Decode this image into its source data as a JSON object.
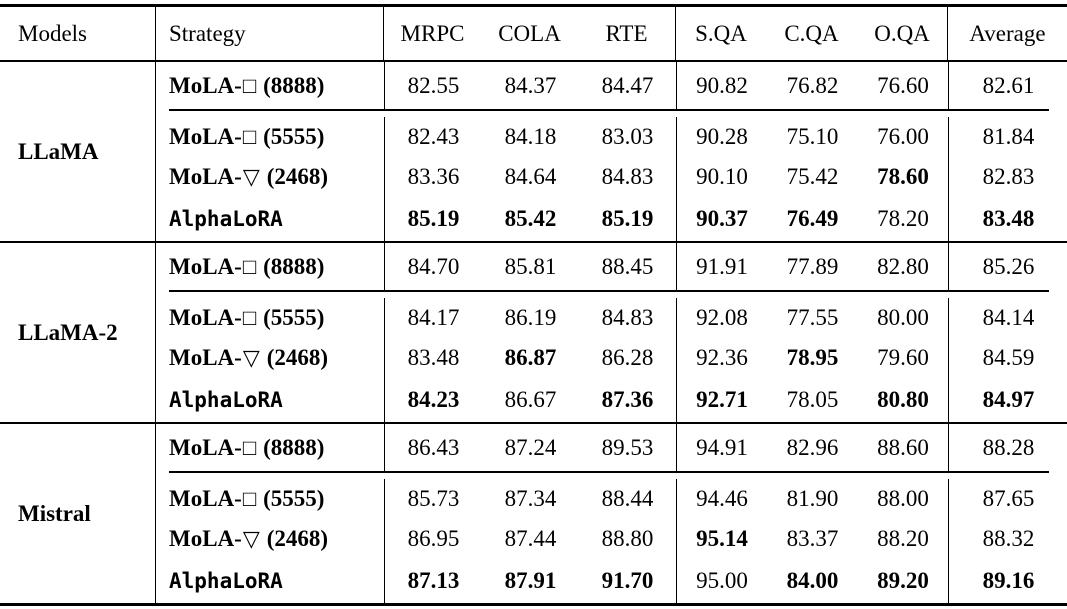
{
  "page": {
    "background": "#ffffff",
    "text_color": "#000000",
    "rule_color": "#000000"
  },
  "table": {
    "headers": [
      {
        "label": "Models"
      },
      {
        "label": "Strategy"
      },
      {
        "label": "MRPC"
      },
      {
        "label": "COLA"
      },
      {
        "label": "RTE"
      },
      {
        "label": "S.QA"
      },
      {
        "label": "C.QA"
      },
      {
        "label": "O.QA"
      },
      {
        "label": "Average"
      }
    ],
    "groups": [
      {
        "model": "LLaMA",
        "rows": [
          {
            "strategy": {
              "mono": false,
              "prefix": "MoLA-",
              "symbol": "□",
              "suffix": "(8888)"
            },
            "values": [
              {
                "v": "82.55",
                "b": false
              },
              {
                "v": "84.37",
                "b": false
              },
              {
                "v": "84.47",
                "b": false
              },
              {
                "v": "90.82",
                "b": false
              },
              {
                "v": "76.82",
                "b": false
              },
              {
                "v": "76.60",
                "b": false
              },
              {
                "v": "82.61",
                "b": false
              }
            ]
          },
          {
            "strategy": {
              "mono": false,
              "prefix": "MoLA-",
              "symbol": "□",
              "suffix": "(5555)"
            },
            "values": [
              {
                "v": "82.43",
                "b": false
              },
              {
                "v": "84.18",
                "b": false
              },
              {
                "v": "83.03",
                "b": false
              },
              {
                "v": "90.28",
                "b": false
              },
              {
                "v": "75.10",
                "b": false
              },
              {
                "v": "76.00",
                "b": false
              },
              {
                "v": "81.84",
                "b": false
              }
            ]
          },
          {
            "strategy": {
              "mono": false,
              "prefix": "MoLA-",
              "symbol": "▽",
              "suffix": "(2468)"
            },
            "values": [
              {
                "v": "83.36",
                "b": false
              },
              {
                "v": "84.64",
                "b": false
              },
              {
                "v": "84.83",
                "b": false
              },
              {
                "v": "90.10",
                "b": false
              },
              {
                "v": "75.42",
                "b": false
              },
              {
                "v": "78.60",
                "b": true
              },
              {
                "v": "82.83",
                "b": false
              }
            ]
          },
          {
            "strategy": {
              "mono": true,
              "text": "AlphaLoRA"
            },
            "values": [
              {
                "v": "85.19",
                "b": true
              },
              {
                "v": "85.42",
                "b": true
              },
              {
                "v": "85.19",
                "b": true
              },
              {
                "v": "90.37",
                "b": true
              },
              {
                "v": "76.49",
                "b": true
              },
              {
                "v": "78.20",
                "b": false
              },
              {
                "v": "83.48",
                "b": true
              }
            ]
          }
        ]
      },
      {
        "model": "LLaMA-2",
        "rows": [
          {
            "strategy": {
              "mono": false,
              "prefix": "MoLA-",
              "symbol": "□",
              "suffix": "(8888)"
            },
            "values": [
              {
                "v": "84.70",
                "b": false
              },
              {
                "v": "85.81",
                "b": false
              },
              {
                "v": "88.45",
                "b": false
              },
              {
                "v": "91.91",
                "b": false
              },
              {
                "v": "77.89",
                "b": false
              },
              {
                "v": "82.80",
                "b": false
              },
              {
                "v": "85.26",
                "b": false
              }
            ]
          },
          {
            "strategy": {
              "mono": false,
              "prefix": "MoLA-",
              "symbol": "□",
              "suffix": "(5555)"
            },
            "values": [
              {
                "v": "84.17",
                "b": false
              },
              {
                "v": "86.19",
                "b": false
              },
              {
                "v": "84.83",
                "b": false
              },
              {
                "v": "92.08",
                "b": false
              },
              {
                "v": "77.55",
                "b": false
              },
              {
                "v": "80.00",
                "b": false
              },
              {
                "v": "84.14",
                "b": false
              }
            ]
          },
          {
            "strategy": {
              "mono": false,
              "prefix": "MoLA-",
              "symbol": "▽",
              "suffix": "(2468)"
            },
            "values": [
              {
                "v": "83.48",
                "b": false
              },
              {
                "v": "86.87",
                "b": true
              },
              {
                "v": "86.28",
                "b": false
              },
              {
                "v": "92.36",
                "b": false
              },
              {
                "v": "78.95",
                "b": true
              },
              {
                "v": "79.60",
                "b": false
              },
              {
                "v": "84.59",
                "b": false
              }
            ]
          },
          {
            "strategy": {
              "mono": true,
              "text": "AlphaLoRA"
            },
            "values": [
              {
                "v": "84.23",
                "b": true
              },
              {
                "v": "86.67",
                "b": false
              },
              {
                "v": "87.36",
                "b": true
              },
              {
                "v": "92.71",
                "b": true
              },
              {
                "v": "78.05",
                "b": false
              },
              {
                "v": "80.80",
                "b": true
              },
              {
                "v": "84.97",
                "b": true
              }
            ]
          }
        ]
      },
      {
        "model": "Mistral",
        "rows": [
          {
            "strategy": {
              "mono": false,
              "prefix": "MoLA-",
              "symbol": "□",
              "suffix": "(8888)"
            },
            "values": [
              {
                "v": "86.43",
                "b": false
              },
              {
                "v": "87.24",
                "b": false
              },
              {
                "v": "89.53",
                "b": false
              },
              {
                "v": "94.91",
                "b": false
              },
              {
                "v": "82.96",
                "b": false
              },
              {
                "v": "88.60",
                "b": false
              },
              {
                "v": "88.28",
                "b": false
              }
            ]
          },
          {
            "strategy": {
              "mono": false,
              "prefix": "MoLA-",
              "symbol": "□",
              "suffix": "(5555)"
            },
            "values": [
              {
                "v": "85.73",
                "b": false
              },
              {
                "v": "87.34",
                "b": false
              },
              {
                "v": "88.44",
                "b": false
              },
              {
                "v": "94.46",
                "b": false
              },
              {
                "v": "81.90",
                "b": false
              },
              {
                "v": "88.00",
                "b": false
              },
              {
                "v": "87.65",
                "b": false
              }
            ]
          },
          {
            "strategy": {
              "mono": false,
              "prefix": "MoLA-",
              "symbol": "▽",
              "suffix": "(2468)"
            },
            "values": [
              {
                "v": "86.95",
                "b": false
              },
              {
                "v": "87.44",
                "b": false
              },
              {
                "v": "88.80",
                "b": false
              },
              {
                "v": "95.14",
                "b": true
              },
              {
                "v": "83.37",
                "b": false
              },
              {
                "v": "88.20",
                "b": false
              },
              {
                "v": "88.32",
                "b": false
              }
            ]
          },
          {
            "strategy": {
              "mono": true,
              "text": "AlphaLoRA"
            },
            "values": [
              {
                "v": "87.13",
                "b": true
              },
              {
                "v": "87.91",
                "b": true
              },
              {
                "v": "91.70",
                "b": true
              },
              {
                "v": "95.00",
                "b": false
              },
              {
                "v": "84.00",
                "b": true
              },
              {
                "v": "89.20",
                "b": true
              },
              {
                "v": "89.16",
                "b": true
              }
            ]
          }
        ]
      }
    ]
  }
}
